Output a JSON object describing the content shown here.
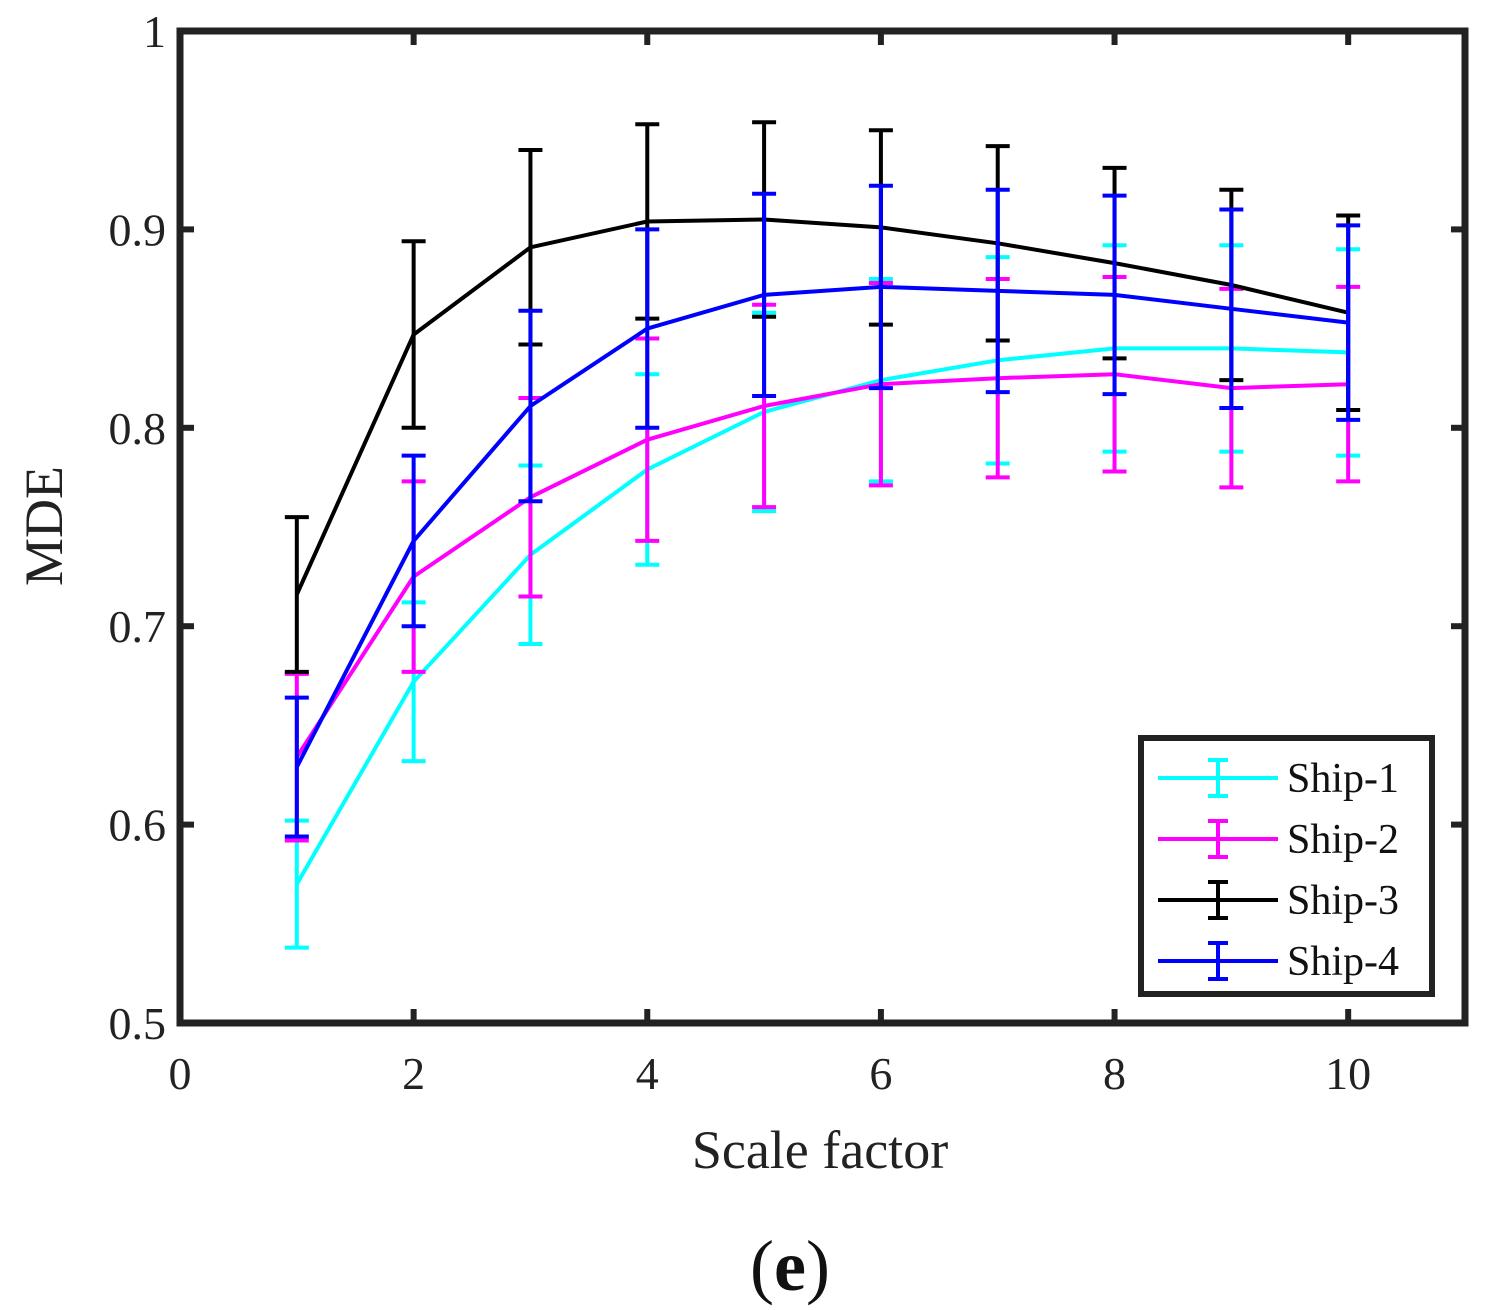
{
  "chart_data": {
    "type": "line",
    "xlabel": "Scale factor",
    "ylabel": "MDE",
    "xlim": [
      0,
      11
    ],
    "ylim": [
      0.5,
      1.0
    ],
    "xticks": [
      0,
      2,
      4,
      6,
      8,
      10
    ],
    "yticks": [
      0.5,
      0.6,
      0.7,
      0.8,
      0.9,
      1.0
    ],
    "xtick_labels": [
      "0",
      "2",
      "4",
      "6",
      "8",
      "10"
    ],
    "ytick_labels": [
      "0.5",
      "0.6",
      "0.7",
      "0.8",
      "0.9",
      "1"
    ],
    "x": [
      1,
      2,
      3,
      4,
      5,
      6,
      7,
      8,
      9,
      10
    ],
    "legend_position": "bottom-right",
    "panel_label_open": "(",
    "panel_label_letter": "e",
    "panel_label_close": ")",
    "series": [
      {
        "name": "Ship-1",
        "color": "#00ffff",
        "values": [
          0.57,
          0.672,
          0.736,
          0.779,
          0.808,
          0.824,
          0.834,
          0.84,
          0.84,
          0.838
        ],
        "err": [
          0.032,
          0.04,
          0.045,
          0.048,
          0.05,
          0.051,
          0.052,
          0.052,
          0.052,
          0.052
        ]
      },
      {
        "name": "Ship-2",
        "color": "#ff00ff",
        "values": [
          0.634,
          0.725,
          0.765,
          0.794,
          0.811,
          0.822,
          0.825,
          0.827,
          0.82,
          0.822
        ],
        "err": [
          0.042,
          0.048,
          0.05,
          0.051,
          0.051,
          0.051,
          0.05,
          0.049,
          0.05,
          0.049
        ]
      },
      {
        "name": "Ship-3",
        "color": "#000000",
        "values": [
          0.716,
          0.847,
          0.891,
          0.904,
          0.905,
          0.901,
          0.893,
          0.883,
          0.872,
          0.858
        ],
        "err": [
          0.039,
          0.047,
          0.049,
          0.049,
          0.049,
          0.049,
          0.049,
          0.048,
          0.048,
          0.049
        ]
      },
      {
        "name": "Ship-4",
        "color": "#0000ff",
        "values": [
          0.629,
          0.743,
          0.811,
          0.85,
          0.867,
          0.871,
          0.869,
          0.867,
          0.86,
          0.853
        ],
        "err": [
          0.035,
          0.043,
          0.048,
          0.05,
          0.051,
          0.051,
          0.051,
          0.05,
          0.05,
          0.049
        ]
      }
    ]
  }
}
